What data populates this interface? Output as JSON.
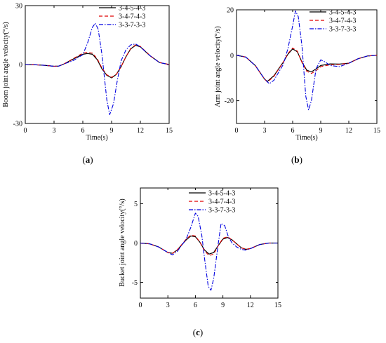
{
  "chart_data": [
    {
      "type": "line",
      "panel_label": "(a)",
      "xlabel": "Time(s)",
      "ylabel": "Boom joint angle velocity(°/s)",
      "xlim": [
        0,
        15
      ],
      "ylim": [
        -30,
        30
      ],
      "xticks": [
        0,
        3,
        6,
        9,
        12,
        15
      ],
      "yticks": [
        -30,
        0,
        30
      ],
      "grid": false,
      "legend_position": "top-right",
      "series": [
        {
          "name": "3-4-5-4-3",
          "color": "#000000",
          "dash": "solid",
          "x": [
            0,
            1,
            2,
            3,
            3.5,
            4,
            5,
            6,
            6.5,
            7,
            7.5,
            8,
            8.5,
            9,
            9.5,
            10,
            10.5,
            11,
            11.5,
            12,
            13,
            14,
            15
          ],
          "y": [
            0,
            -0.1,
            -0.4,
            -0.9,
            -0.8,
            0.2,
            2.8,
            5.2,
            5.6,
            5.2,
            2.5,
            -2.2,
            -5.5,
            -6.8,
            -5,
            -1,
            4,
            8,
            9.8,
            9,
            4.5,
            1,
            0
          ]
        },
        {
          "name": "3-4-7-4-3",
          "color": "#e00000",
          "dash": "dash",
          "x": [
            0,
            1,
            2,
            3,
            3.5,
            4,
            5,
            6,
            6.5,
            7,
            7.5,
            8,
            8.5,
            9,
            9.5,
            10,
            10.5,
            11,
            11.5,
            12,
            13,
            14,
            15
          ],
          "y": [
            0,
            -0.1,
            -0.4,
            -0.9,
            -0.8,
            0.2,
            3,
            5.8,
            6.2,
            5.8,
            3,
            -1.8,
            -5.2,
            -6.5,
            -5,
            -1,
            4,
            8.2,
            10,
            9.2,
            4.6,
            1,
            0
          ]
        },
        {
          "name": "3-3-7-3-3",
          "color": "#0000e0",
          "dash": "dashdot",
          "x": [
            0,
            1,
            2,
            3,
            3.5,
            4,
            5,
            6,
            6.5,
            7,
            7.3,
            7.6,
            8,
            8.5,
            8.8,
            9.2,
            9.6,
            10,
            10.5,
            11,
            11.5,
            12,
            13,
            14,
            15
          ],
          "y": [
            0,
            -0.1,
            -0.4,
            -0.9,
            -0.8,
            0.2,
            2,
            5,
            11,
            19,
            21,
            18,
            5,
            -18,
            -25.5,
            -20,
            -8,
            2,
            7.5,
            10,
            10.5,
            9,
            4.5,
            1,
            0
          ]
        }
      ]
    },
    {
      "type": "line",
      "panel_label": "(b)",
      "xlabel": "Time(s)",
      "ylabel": "Arm joint angle velocity(°/s)",
      "xlim": [
        0,
        15
      ],
      "ylim": [
        -30,
        20
      ],
      "xticks": [
        0,
        3,
        6,
        9,
        12,
        15
      ],
      "yticks": [
        -20,
        0,
        20
      ],
      "grid": false,
      "legend_position": "top-right",
      "series": [
        {
          "name": "3-4-5-4-3",
          "color": "#000000",
          "dash": "solid",
          "x": [
            0,
            1,
            2,
            3,
            3.3,
            4,
            5,
            5.5,
            6,
            6.5,
            7,
            7.5,
            8,
            8.5,
            9,
            10,
            11,
            12,
            13,
            14,
            15
          ],
          "y": [
            0,
            -0.8,
            -4.5,
            -10.5,
            -11.5,
            -9,
            -3,
            0.5,
            2.8,
            1.5,
            -3,
            -6.5,
            -7.3,
            -6,
            -4.5,
            -3.8,
            -3.9,
            -3.5,
            -1.5,
            -0.3,
            0
          ]
        },
        {
          "name": "3-4-7-4-3",
          "color": "#e00000",
          "dash": "dash",
          "x": [
            0,
            1,
            2,
            3,
            3.3,
            4,
            5,
            5.5,
            6,
            6.5,
            7,
            7.5,
            8,
            8.5,
            9,
            10,
            11,
            12,
            13,
            14,
            15
          ],
          "y": [
            0,
            -0.8,
            -4.5,
            -10.5,
            -11.8,
            -9.3,
            -3,
            0.8,
            3.2,
            1.8,
            -3.2,
            -7,
            -8,
            -6.8,
            -5,
            -4.2,
            -4,
            -3.5,
            -1.5,
            -0.3,
            0
          ]
        },
        {
          "name": "3-3-7-3-3",
          "color": "#0000e0",
          "dash": "dashdot",
          "x": [
            0,
            1,
            2,
            3,
            3.5,
            4,
            5,
            5.5,
            6,
            6.3,
            6.6,
            7,
            7.4,
            7.7,
            8,
            8.5,
            9,
            9.5,
            10,
            11,
            12,
            13,
            14,
            15
          ],
          "y": [
            0,
            -0.8,
            -4.5,
            -10.5,
            -12.5,
            -11,
            -4,
            3,
            13,
            19.5,
            17,
            4,
            -18,
            -24,
            -20,
            -6,
            -2,
            -3,
            -4.5,
            -5,
            -3.5,
            -1.5,
            -0.3,
            0
          ]
        }
      ]
    },
    {
      "type": "line",
      "panel_label": "(c)",
      "xlabel": "",
      "ylabel": "Bucket joint angle velocity(°/s)",
      "xlim": [
        0,
        15
      ],
      "ylim": [
        -7,
        7
      ],
      "xticks": [
        0,
        3,
        6,
        9,
        12,
        15
      ],
      "yticks": [
        -5,
        0,
        5
      ],
      "grid": false,
      "legend_position": "top-right",
      "series": [
        {
          "name": "3-4-5-4-3",
          "color": "#000000",
          "dash": "solid",
          "x": [
            0,
            1,
            2,
            3,
            3.5,
            4,
            5,
            5.5,
            6,
            6.5,
            7,
            7.5,
            8,
            8.5,
            9,
            9.5,
            10,
            11,
            11.5,
            12,
            13,
            14,
            15
          ],
          "y": [
            0,
            -0.1,
            -0.5,
            -1.2,
            -1.3,
            -0.9,
            0.4,
            0.9,
            0.8,
            0.1,
            -0.9,
            -1.4,
            -1.2,
            -0.3,
            0.5,
            0.7,
            0.4,
            -0.6,
            -0.8,
            -0.7,
            -0.2,
            0,
            0
          ]
        },
        {
          "name": "3-4-7-4-3",
          "color": "#e00000",
          "dash": "dash",
          "x": [
            0,
            1,
            2,
            3,
            3.5,
            4,
            5,
            5.5,
            6,
            6.5,
            7,
            7.5,
            8,
            8.5,
            9,
            9.5,
            10,
            11,
            11.5,
            12,
            13,
            14,
            15
          ],
          "y": [
            0,
            -0.1,
            -0.5,
            -1.2,
            -1.3,
            -0.9,
            0.5,
            1,
            0.9,
            0.1,
            -1,
            -1.6,
            -1.4,
            -0.3,
            0.6,
            0.8,
            0.4,
            -0.6,
            -0.8,
            -0.7,
            -0.2,
            0,
            0
          ]
        },
        {
          "name": "3-3-7-3-3",
          "color": "#0000e0",
          "dash": "dashdot",
          "x": [
            0,
            1,
            2,
            3,
            3.5,
            4,
            5,
            5.5,
            6,
            6.3,
            6.7,
            7,
            7.4,
            7.7,
            8,
            8.5,
            8.8,
            9.2,
            9.6,
            10,
            10.5,
            11,
            11.5,
            12,
            13,
            14,
            15
          ],
          "y": [
            0,
            -0.1,
            -0.5,
            -1.2,
            -1.5,
            -1.1,
            0.5,
            2,
            3.8,
            3.4,
            1,
            -2,
            -5.5,
            -6,
            -4.5,
            0,
            2.5,
            2.2,
            0.8,
            0,
            -0.5,
            -0.8,
            -0.9,
            -0.7,
            -0.2,
            0,
            0
          ]
        }
      ]
    }
  ]
}
